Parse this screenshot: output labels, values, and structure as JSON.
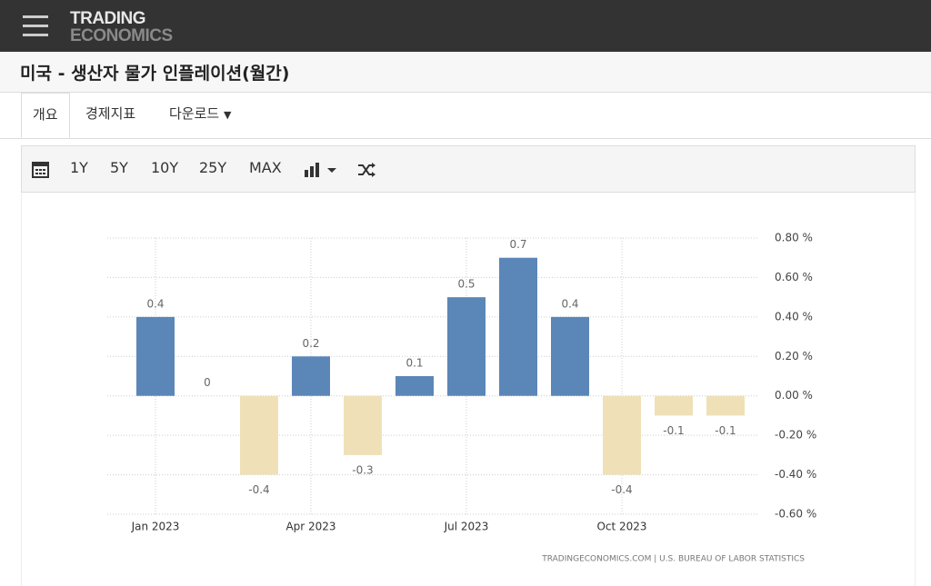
{
  "header": {
    "brand_line1": "TRADING",
    "brand_line2": "ECONOMICS"
  },
  "page_title": "미국 - 생산자 물가 인플레이션(월간)",
  "tabs": [
    "개요",
    "경제지표",
    "다운로드"
  ],
  "toolbar": {
    "ranges": [
      "1Y",
      "5Y",
      "10Y",
      "25Y",
      "MAX"
    ]
  },
  "chart_data": {
    "type": "bar",
    "categories": [
      "Jan 2023",
      null,
      null,
      "Apr 2023",
      null,
      null,
      "Jul 2023",
      null,
      null,
      "Oct 2023",
      null,
      null
    ],
    "values": [
      0.4,
      0,
      -0.4,
      0.2,
      -0.3,
      0.1,
      0.5,
      0.7,
      0.4,
      -0.4,
      -0.1,
      -0.1
    ],
    "positive_color": "#5b86b8",
    "negative_color": "#efe0b7",
    "ylim": [
      -0.6,
      0.8
    ],
    "yticks": [
      {
        "value": -0.6,
        "label": "-0.60 %"
      },
      {
        "value": -0.4,
        "label": "-0.40 %"
      },
      {
        "value": -0.2,
        "label": "-0.20 %"
      },
      {
        "value": 0,
        "label": "0.00 %"
      },
      {
        "value": 0.2,
        "label": "0.20 %"
      },
      {
        "value": 0.4,
        "label": "0.40 %"
      },
      {
        "value": 0.6,
        "label": "0.60 %"
      },
      {
        "value": 0.8,
        "label": "0.80 %"
      }
    ],
    "grid": true,
    "source": "TRADINGECONOMICS.COM | U.S. BUREAU OF LABOR STATISTICS"
  }
}
